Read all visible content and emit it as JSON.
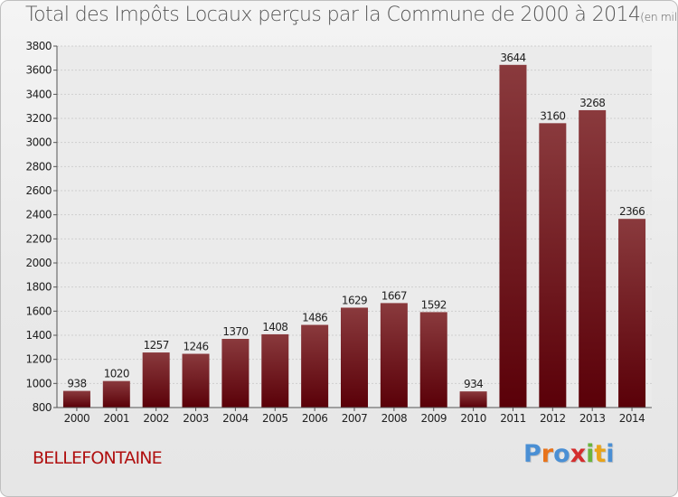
{
  "header": {
    "title": "Total des Impôts Locaux perçus par la Commune de 2000 à 2014",
    "unit_note": "(en milliers d'€)"
  },
  "footer": {
    "commune": "BELLEFONTAINE",
    "logo": [
      "P",
      "r",
      "o",
      "x",
      "i",
      "t",
      "i"
    ],
    "logo_colors": [
      "#4a8fd4",
      "#e8731a",
      "#4a8fd4",
      "#d42d2d",
      "#6ab43d",
      "#e8a41a",
      "#4a8fd4"
    ]
  },
  "chart_data": {
    "type": "bar",
    "title": "Total des Impôts Locaux perçus par la Commune de 2000 à 2014",
    "unit": "(en milliers d'€)",
    "categories": [
      "2000",
      "2001",
      "2002",
      "2003",
      "2004",
      "2005",
      "2006",
      "2007",
      "2008",
      "2009",
      "2010",
      "2011",
      "2012",
      "2013",
      "2014"
    ],
    "values": [
      938,
      1020,
      1257,
      1246,
      1370,
      1408,
      1486,
      1629,
      1667,
      1592,
      934,
      3644,
      3160,
      3268,
      2366
    ],
    "ylim": [
      800,
      3800
    ],
    "ytick_step": 200,
    "grid": true,
    "bar_color_top": "#8a3a3d",
    "bar_color_bottom": "#5a0008"
  }
}
